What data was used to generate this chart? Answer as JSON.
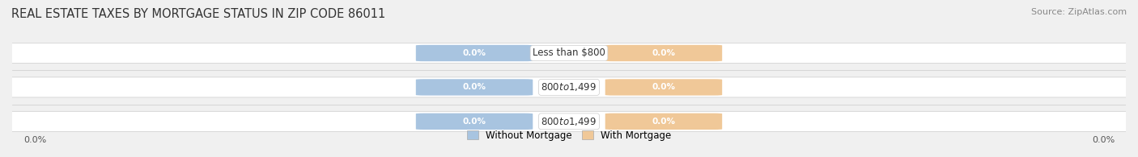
{
  "title": "REAL ESTATE TAXES BY MORTGAGE STATUS IN ZIP CODE 86011",
  "source": "Source: ZipAtlas.com",
  "categories": [
    "Less than $800",
    "$800 to $1,499",
    "$800 to $1,499"
  ],
  "without_mortgage": [
    0.0,
    0.0,
    0.0
  ],
  "with_mortgage": [
    0.0,
    0.0,
    0.0
  ],
  "bar_color_without": "#a8c4e0",
  "bar_color_with": "#f0c898",
  "bg_color": "#f0f0f0",
  "legend_without": "Without Mortgage",
  "legend_with": "With Mortgage",
  "left_label": "0.0%",
  "right_label": "0.0%",
  "title_fontsize": 10.5,
  "source_fontsize": 8,
  "label_fontsize": 8.5,
  "bar_height": 0.55,
  "figsize": [
    14.06,
    1.95
  ],
  "dpi": 100
}
